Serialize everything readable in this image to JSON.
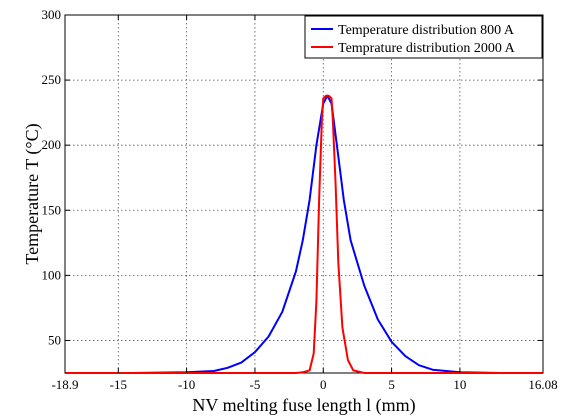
{
  "chart_data": {
    "type": "line",
    "xlabel": "NV melting fuse length l (mm)",
    "ylabel": "Temperature T (°C)",
    "xlim": [
      -18.9,
      16.08
    ],
    "ylim": [
      25,
      300
    ],
    "xticks": [
      -18.9,
      -15,
      -10,
      -5,
      0,
      5,
      10,
      16.08
    ],
    "xtick_labels": [
      "-18.9",
      "-15",
      "-10",
      "-5",
      "0",
      "5",
      "10",
      "16.08"
    ],
    "yticks": [
      50,
      100,
      150,
      200,
      250,
      300
    ],
    "ytick_labels": [
      "50",
      "100",
      "150",
      "200",
      "250",
      "300"
    ],
    "grid": true,
    "legend_position": "top-right",
    "series": [
      {
        "name": "Temperature distribution  800 A",
        "color": "#0000ff",
        "x": [
          -18.9,
          -14,
          -10,
          -8,
          -7,
          -6,
          -5,
          -4,
          -3,
          -2,
          -1.5,
          -1,
          -0.5,
          0,
          0.3,
          0.6,
          1,
          1.5,
          2,
          3,
          4,
          5,
          6,
          7,
          8,
          10,
          13,
          16.08
        ],
        "y": [
          25,
          25,
          25.5,
          26.5,
          29,
          33,
          41,
          53,
          72,
          103,
          127,
          158,
          200,
          232,
          238,
          232,
          200,
          158,
          127,
          92,
          66,
          49,
          38,
          31,
          27.5,
          25.5,
          25,
          25
        ]
      },
      {
        "name": "Temprature distribution  2000 A",
        "color": "#ff0000",
        "x": [
          -18.9,
          -5,
          -2,
          -1.5,
          -1,
          -0.7,
          -0.5,
          -0.3,
          -0.1,
          0,
          0.2,
          0.4,
          0.6,
          0.7,
          0.9,
          1.1,
          1.4,
          1.8,
          2.2,
          3,
          5,
          16.08
        ],
        "y": [
          25,
          25,
          25,
          25.5,
          27,
          40,
          80,
          160,
          220,
          236,
          238,
          238,
          236,
          220,
          170,
          110,
          60,
          35,
          27,
          25,
          25,
          25
        ]
      }
    ]
  }
}
